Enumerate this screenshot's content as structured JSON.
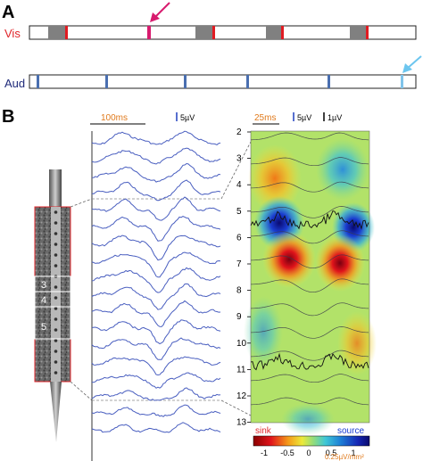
{
  "panel_a": {
    "letter": "A",
    "vis_label": "Vis",
    "aud_label": "Aud",
    "colors": {
      "vis_label": "#e0262b",
      "aud_label": "#1f2a7a",
      "vis_arrow": "#d81b6e",
      "aud_arrow": "#6cc6ef",
      "gray_block": "#808080",
      "red_tick": "#e11b22",
      "blue_tick": "#4a6fb0",
      "light_blue_tick": "#7fc4ea"
    }
  },
  "panel_b": {
    "letter": "B",
    "traces_scale": {
      "time": "100ms",
      "amp": "5µV"
    },
    "csd_scale": {
      "time": "25ms",
      "amp_blue": "5µV",
      "amp_black": "1µV"
    },
    "channels": [
      "2",
      "3",
      "4",
      "5",
      "6",
      "7",
      "8",
      "9",
      "10",
      "11",
      "12",
      "13"
    ],
    "probe_labels": [
      "3",
      "4",
      "5"
    ],
    "colorbar": {
      "sink_label": "sink",
      "source_label": "source",
      "ticks": [
        "-1",
        "-0.5",
        "0",
        "0.5",
        "1"
      ],
      "unit": "0.25µV/mm²"
    }
  }
}
